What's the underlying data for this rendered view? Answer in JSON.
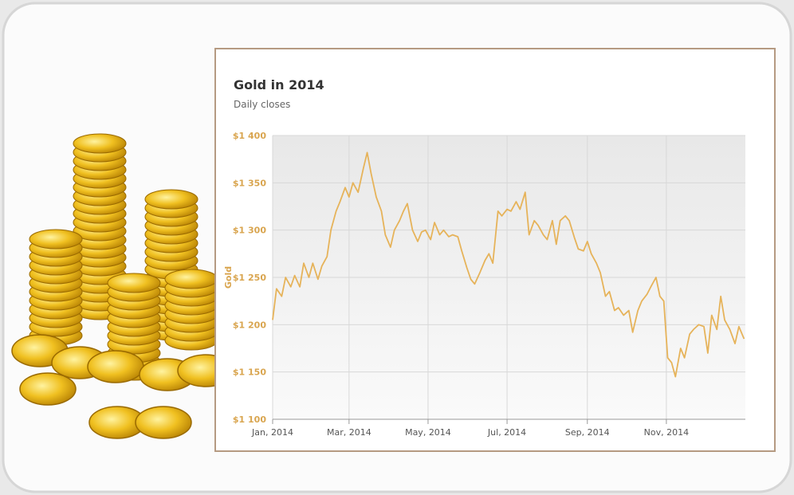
{
  "chart_data": {
    "type": "line",
    "title": "Gold in 2014",
    "subtitle": "Daily closes",
    "y_label": "Gold",
    "color": "#e6b35a",
    "grid": true,
    "x": [
      0,
      3,
      7,
      10,
      14,
      17,
      21,
      24,
      28,
      31,
      35,
      38,
      42,
      45,
      49,
      52,
      56,
      59,
      62,
      66,
      70,
      73,
      76,
      80,
      84,
      87,
      91,
      94,
      98,
      101,
      104,
      108,
      112,
      115,
      118,
      122,
      125,
      129,
      132,
      136,
      139,
      143,
      146,
      150,
      153,
      156,
      160,
      164,
      167,
      170,
      174,
      177,
      181,
      184,
      188,
      191,
      195,
      198,
      202,
      205,
      209,
      212,
      216,
      219,
      222,
      226,
      229,
      233,
      236,
      240,
      243,
      246,
      250,
      253,
      257,
      260,
      264,
      267,
      271,
      275,
      278,
      282,
      285,
      289,
      292,
      296,
      299,
      302,
      305,
      308,
      311,
      315,
      318,
      322,
      325,
      329,
      333,
      336,
      339,
      343,
      346,
      349,
      353,
      357,
      360,
      364
    ],
    "values": [
      1205,
      1238,
      1230,
      1250,
      1240,
      1252,
      1240,
      1265,
      1250,
      1265,
      1248,
      1262,
      1272,
      1300,
      1320,
      1330,
      1345,
      1335,
      1350,
      1340,
      1365,
      1382,
      1360,
      1335,
      1320,
      1295,
      1282,
      1300,
      1310,
      1320,
      1328,
      1300,
      1288,
      1298,
      1300,
      1290,
      1308,
      1295,
      1300,
      1293,
      1295,
      1293,
      1278,
      1260,
      1248,
      1243,
      1255,
      1268,
      1275,
      1265,
      1320,
      1315,
      1322,
      1320,
      1330,
      1322,
      1340,
      1295,
      1310,
      1305,
      1295,
      1290,
      1310,
      1285,
      1310,
      1315,
      1310,
      1292,
      1280,
      1278,
      1288,
      1275,
      1265,
      1255,
      1230,
      1235,
      1215,
      1218,
      1210,
      1215,
      1192,
      1215,
      1225,
      1232,
      1240,
      1250,
      1230,
      1225,
      1165,
      1160,
      1145,
      1175,
      1165,
      1190,
      1195,
      1200,
      1198,
      1170,
      1210,
      1195,
      1230,
      1205,
      1195,
      1180,
      1198,
      1185
    ],
    "xlim": [
      0,
      365
    ],
    "xticks": [
      {
        "value": 0,
        "label": "Jan, 2014"
      },
      {
        "value": 59,
        "label": "Mar, 2014"
      },
      {
        "value": 120,
        "label": "May, 2014"
      },
      {
        "value": 181,
        "label": "Jul, 2014"
      },
      {
        "value": 243,
        "label": "Sep, 2014"
      },
      {
        "value": 304,
        "label": "Nov, 2014"
      }
    ],
    "ylim": [
      1100,
      1400
    ],
    "yticks": [
      {
        "value": 1100,
        "label": "$1 100"
      },
      {
        "value": 1150,
        "label": "$1 150"
      },
      {
        "value": 1200,
        "label": "$1 200"
      },
      {
        "value": 1250,
        "label": "$1 250"
      },
      {
        "value": 1300,
        "label": "$1 300"
      },
      {
        "value": 1350,
        "label": "$1 350"
      },
      {
        "value": 1400,
        "label": "$1 400"
      }
    ]
  }
}
